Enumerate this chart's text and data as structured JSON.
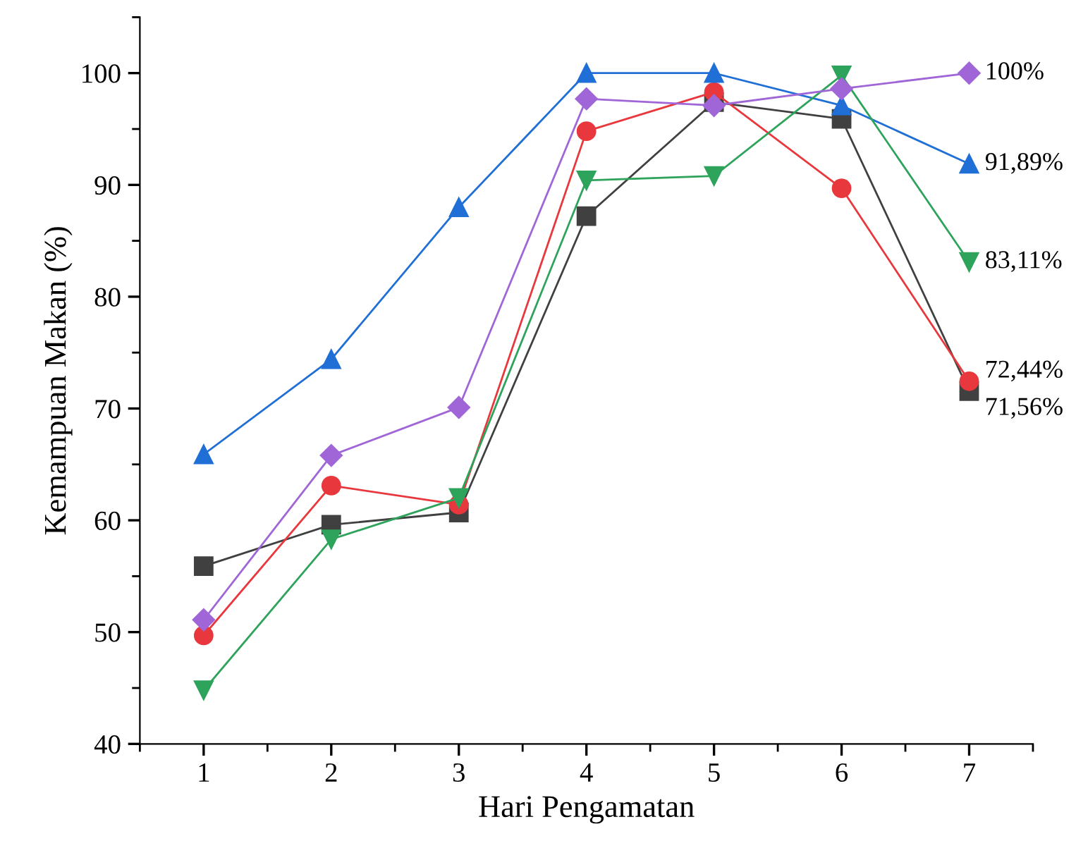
{
  "chart_data": {
    "type": "line",
    "xlabel": "Hari Pengamatan",
    "ylabel": "Kemampuan Makan (%)",
    "x": [
      1,
      2,
      3,
      4,
      5,
      6,
      7
    ],
    "xlim": [
      0.5,
      7.5
    ],
    "xticks": [
      1,
      2,
      3,
      4,
      5,
      6,
      7
    ],
    "ylim": [
      40,
      105
    ],
    "yticks": [
      40,
      50,
      60,
      70,
      80,
      90,
      100
    ],
    "grid": false,
    "line_style": "solid",
    "series": [
      {
        "color": "#404040",
        "marker": "square",
        "values": [
          55.9,
          59.6,
          60.7,
          87.2,
          97.4,
          95.9,
          71.56
        ],
        "value_labels": [
          null,
          null,
          null,
          null,
          null,
          null,
          "71,56%"
        ]
      },
      {
        "color": "#e8383d",
        "marker": "circle",
        "values": [
          49.7,
          63.1,
          61.4,
          94.8,
          98.3,
          89.7,
          72.44
        ],
        "value_labels": [
          null,
          null,
          null,
          null,
          null,
          null,
          "72,44%"
        ]
      },
      {
        "color": "#1f6fd6",
        "marker": "triangle",
        "values": [
          65.9,
          74.4,
          88.0,
          100,
          100,
          97.1,
          91.89
        ],
        "value_labels": [
          null,
          null,
          null,
          null,
          null,
          null,
          "91,89%"
        ]
      },
      {
        "color": "#2ea35b",
        "marker": "triangle_down",
        "values": [
          44.8,
          58.3,
          62.0,
          90.4,
          90.8,
          99.8,
          83.11
        ],
        "value_labels": [
          null,
          null,
          null,
          null,
          null,
          null,
          "83,11%"
        ]
      },
      {
        "color": "#a066d8",
        "marker": "diamond",
        "values": [
          51.1,
          65.8,
          70.1,
          97.7,
          97.1,
          98.6,
          100
        ],
        "value_labels": [
          null,
          null,
          null,
          null,
          null,
          null,
          "100%"
        ]
      }
    ]
  }
}
